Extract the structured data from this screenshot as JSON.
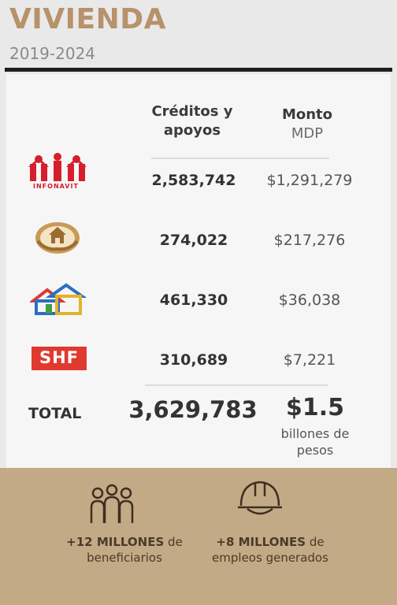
{
  "header": {
    "title": "VIVIENDA",
    "period": "2019-2024"
  },
  "table": {
    "col_credits_line1": "Créditos y",
    "col_credits_line2": "apoyos",
    "col_amount": "Monto",
    "col_amount_unit": "MDP",
    "rows": [
      {
        "logo": "infonavit-logo",
        "logo_text": "INFONAVIT",
        "credits": "2,583,742",
        "amount": "$1,291,279"
      },
      {
        "logo": "fovissste-logo",
        "credits": "274,022",
        "amount": "$217,276"
      },
      {
        "logo": "conavi-logo",
        "credits": "461,330",
        "amount": "$36,038"
      },
      {
        "logo": "shf-logo",
        "logo_text": "SHF",
        "credits": "310,689",
        "amount": "$7,221"
      }
    ],
    "total_label": "TOTAL",
    "total_credits": "3,629,783",
    "total_amount": "$1.5",
    "total_amount_line1": "billones de",
    "total_amount_line2": "pesos"
  },
  "footer": {
    "beneficiaries_value": "+12 MILLONES",
    "beneficiaries_suffix": " de",
    "beneficiaries_label": "beneficiarios",
    "jobs_value": "+8 MILLONES",
    "jobs_suffix": " de",
    "jobs_label": "empleos generados"
  },
  "colors": {
    "title": "#b7926a",
    "footer_band": "#c3aa86",
    "infonavit_red": "#d61f2c",
    "shf_red": "#e03a2f"
  }
}
